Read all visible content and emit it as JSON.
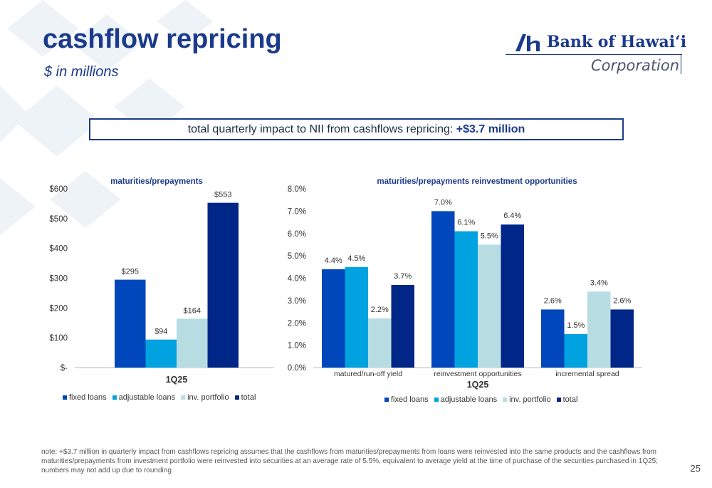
{
  "slide": {
    "title": "cashflow repricing",
    "subtitle": "$ in millions",
    "impact_text": "total quarterly impact to NII from cashflows repricing: ",
    "impact_value": "+$3.7 million",
    "note": "note: +$3.7 million in quarterly impact from cashflows repricing assumes that the cashflows from maturities/prepayments from loans were reinvested into the same products and the cashflows from maturities/prepayments from investment portfolio were reinvested into securities at an average rate of 5.5%, equivalent to average yield at the time of purchase of the securities purchased in 1Q25; numbers may not add up due to rounding",
    "page_number": "25"
  },
  "logo": {
    "name": "Bank of Hawaiʻi",
    "corporation": "Corporation"
  },
  "colors": {
    "fixed_loans": "#0047bb",
    "adjustable_loans": "#00a3e0",
    "inv_portfolio": "#b7dde3",
    "total": "#002687",
    "brand": "#1b3a8c"
  },
  "chart_data": [
    {
      "type": "bar",
      "title": "maturities/prepayments",
      "categories": [
        "1Q25"
      ],
      "category_label": "1Q25",
      "series": [
        {
          "name": "fixed loans",
          "values": [
            295
          ],
          "label": "$295"
        },
        {
          "name": "adjustable loans",
          "values": [
            94
          ],
          "label": "$94"
        },
        {
          "name": "inv. portfolio",
          "values": [
            164
          ],
          "label": "$164"
        },
        {
          "name": "total",
          "values": [
            553
          ],
          "label": "$553"
        }
      ],
      "ylim": [
        0,
        600
      ],
      "yticks": [
        0,
        100,
        200,
        300,
        400,
        500,
        600
      ],
      "ytick_labels": [
        "$-",
        "$100",
        "$200",
        "$300",
        "$400",
        "$500",
        "$600"
      ],
      "legend": "bottom"
    },
    {
      "type": "bar",
      "title": "maturities/prepayments reinvestment opportunities",
      "categories": [
        "matured/run-off yield",
        "reinvestment opportunities",
        "incremental spread"
      ],
      "xlabel": "1Q25",
      "series": [
        {
          "name": "fixed loans",
          "values": [
            4.4,
            7.0,
            2.6
          ],
          "labels": [
            "4.4%",
            "7.0%",
            "2.6%"
          ]
        },
        {
          "name": "adjustable loans",
          "values": [
            4.5,
            6.1,
            1.5
          ],
          "labels": [
            "4.5%",
            "6.1%",
            "1.5%"
          ]
        },
        {
          "name": "inv. portfolio",
          "values": [
            2.2,
            5.5,
            3.4
          ],
          "labels": [
            "2.2%",
            "5.5%",
            "3.4%"
          ]
        },
        {
          "name": "total",
          "values": [
            3.7,
            6.4,
            2.6
          ],
          "labels": [
            "3.7%",
            "6.4%",
            "2.6%"
          ]
        }
      ],
      "ylim": [
        0,
        8
      ],
      "yticks": [
        0,
        1,
        2,
        3,
        4,
        5,
        6,
        7,
        8
      ],
      "ytick_labels": [
        "0.0%",
        "1.0%",
        "2.0%",
        "3.0%",
        "4.0%",
        "5.0%",
        "6.0%",
        "7.0%",
        "8.0%"
      ],
      "legend": "bottom"
    }
  ]
}
